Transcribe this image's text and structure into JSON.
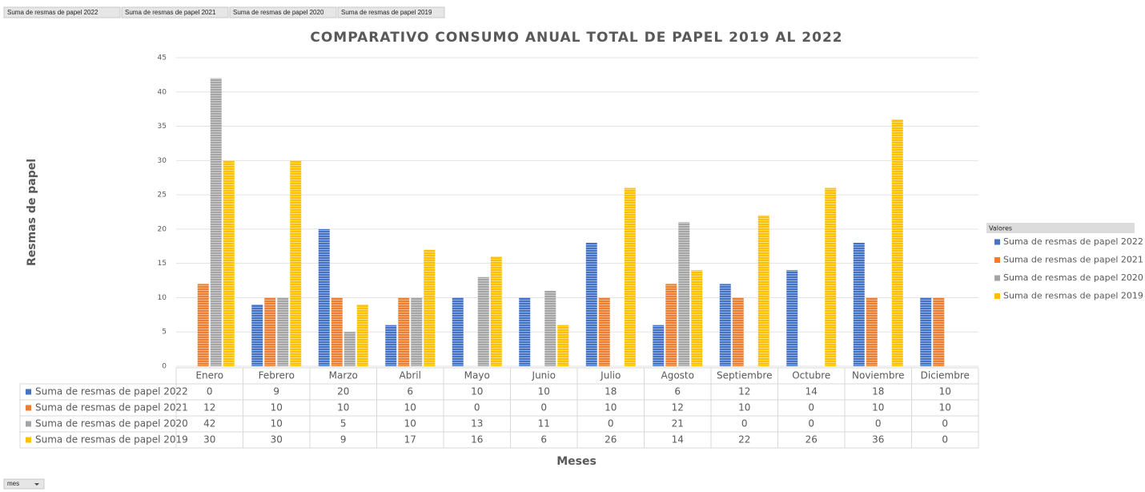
{
  "chart_data": {
    "type": "bar",
    "title": "COMPARATIVO CONSUMO ANUAL TOTAL DE PAPEL  2019 AL 2022",
    "x_label": "Meses",
    "y_label": "Resmas de papel",
    "categories": [
      "Enero",
      "Febrero",
      "Marzo",
      "Abril",
      "Mayo",
      "Junio",
      "Julio",
      "Agosto",
      "Septiembre",
      "Octubre",
      "Noviembre",
      "Diciembre"
    ],
    "series": [
      {
        "name": "Suma de resmas de papel 2022",
        "color": "#4472c4",
        "values": [
          0,
          9,
          20,
          6,
          10,
          10,
          18,
          6,
          12,
          14,
          18,
          10
        ]
      },
      {
        "name": "Suma de resmas de papel 2021",
        "color": "#ed7d31",
        "values": [
          12,
          10,
          10,
          10,
          0,
          0,
          10,
          12,
          10,
          0,
          10,
          10
        ]
      },
      {
        "name": "Suma de resmas de papel 2020",
        "color": "#a5a5a5",
        "values": [
          42,
          10,
          5,
          10,
          13,
          11,
          0,
          21,
          0,
          0,
          0,
          0
        ]
      },
      {
        "name": "Suma de resmas de papel 2019",
        "color": "#ffc000",
        "values": [
          30,
          30,
          9,
          17,
          16,
          6,
          26,
          14,
          22,
          26,
          36,
          0
        ]
      }
    ],
    "ylim": [
      0,
      45
    ],
    "yticks": [
      0,
      5,
      10,
      15,
      20,
      25,
      30,
      35,
      40,
      45
    ],
    "grid": true,
    "legend": "right",
    "legend_title": "Valores",
    "data_table": true,
    "row_field": "mes"
  }
}
